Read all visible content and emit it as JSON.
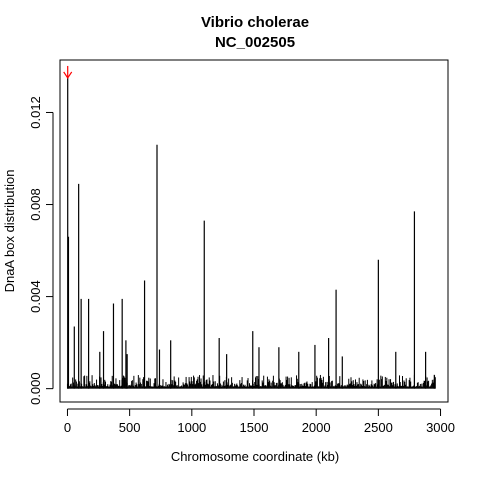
{
  "chart_data": {
    "type": "bar",
    "title": "Vibrio cholerae",
    "subtitle": "NC_002505",
    "xlabel": "Chromosome coordinate (kb)",
    "ylabel": "DnaA box distribution",
    "xlim": [
      -60,
      3060
    ],
    "ylim": [
      -0.00058,
      0.01428
    ],
    "xticks": [
      0,
      500,
      1000,
      1500,
      2000,
      2500,
      3000
    ],
    "xtick_labels": [
      "0",
      "500",
      "1000",
      "1500",
      "2000",
      "2500",
      "3000"
    ],
    "yticks": [
      0.0,
      0.004,
      0.008,
      0.012
    ],
    "ytick_labels": [
      "0.000",
      "0.004",
      "0.008",
      "0.012"
    ],
    "grid": false,
    "bar_color": "#000000",
    "peaks": [
      {
        "x": 2,
        "y": 0.0135
      },
      {
        "x": 8,
        "y": 0.0066
      },
      {
        "x": 55,
        "y": 0.0027
      },
      {
        "x": 90,
        "y": 0.0089
      },
      {
        "x": 110,
        "y": 0.0039
      },
      {
        "x": 170,
        "y": 0.0039
      },
      {
        "x": 260,
        "y": 0.0016
      },
      {
        "x": 290,
        "y": 0.0025
      },
      {
        "x": 370,
        "y": 0.0037
      },
      {
        "x": 440,
        "y": 0.0039
      },
      {
        "x": 470,
        "y": 0.0021
      },
      {
        "x": 480,
        "y": 0.0015
      },
      {
        "x": 620,
        "y": 0.0047
      },
      {
        "x": 720,
        "y": 0.0106
      },
      {
        "x": 740,
        "y": 0.0017
      },
      {
        "x": 830,
        "y": 0.0021
      },
      {
        "x": 1100,
        "y": 0.0073
      },
      {
        "x": 1220,
        "y": 0.0022
      },
      {
        "x": 1280,
        "y": 0.0015
      },
      {
        "x": 1490,
        "y": 0.0025
      },
      {
        "x": 1540,
        "y": 0.0018
      },
      {
        "x": 1700,
        "y": 0.0018
      },
      {
        "x": 1860,
        "y": 0.0016
      },
      {
        "x": 1990,
        "y": 0.0019
      },
      {
        "x": 2100,
        "y": 0.0022
      },
      {
        "x": 2160,
        "y": 0.0043
      },
      {
        "x": 2210,
        "y": 0.0014
      },
      {
        "x": 2500,
        "y": 0.0056
      },
      {
        "x": 2640,
        "y": 0.0016
      },
      {
        "x": 2790,
        "y": 0.0077
      },
      {
        "x": 2880,
        "y": 0.0016
      },
      {
        "x": 2950,
        "y": 0.0006
      }
    ],
    "baseline_band": {
      "x_start": 0,
      "x_end": 2960,
      "typical_max": 0.0006
    },
    "annotation": {
      "type": "arrow",
      "x": 2,
      "y": 0.0135,
      "color": "#ff0000"
    }
  }
}
